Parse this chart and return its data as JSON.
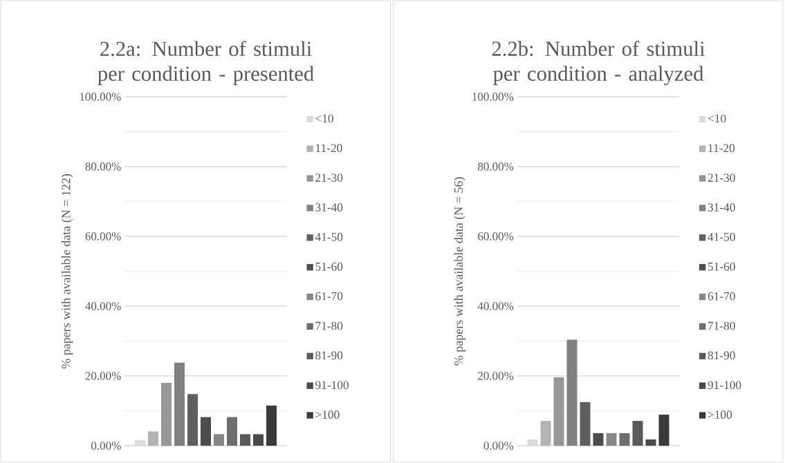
{
  "chart_data": [
    {
      "type": "bar",
      "title": "2.2a: Number of stimuli per condition - presented",
      "ylabel": "% papers with available data (N = 122)",
      "categories": [
        null
      ],
      "ylim": [
        0,
        100
      ],
      "yticks": [
        {
          "value": 0,
          "label": "0.00%"
        },
        {
          "value": 10,
          "label": null
        },
        {
          "value": 20,
          "label": "20.00%"
        },
        {
          "value": 30,
          "label": null
        },
        {
          "value": 40,
          "label": "40.00%"
        },
        {
          "value": 50,
          "label": null
        },
        {
          "value": 60,
          "label": "60.00%"
        },
        {
          "value": 70,
          "label": null
        },
        {
          "value": 80,
          "label": "80.00%"
        },
        {
          "value": 90,
          "label": null
        },
        {
          "value": 100,
          "label": "100.00%"
        }
      ],
      "grid": "y",
      "legend": "right",
      "series": [
        {
          "name": "<10",
          "color": "#dadada",
          "values": [
            1.6
          ]
        },
        {
          "name": "11-20",
          "color": "#b3b3b3",
          "values": [
            4.1
          ]
        },
        {
          "name": "21-30",
          "color": "#969696",
          "values": [
            18.0
          ]
        },
        {
          "name": "31-40",
          "color": "#808080",
          "values": [
            23.8
          ]
        },
        {
          "name": "41-50",
          "color": "#5f5f5f",
          "values": [
            14.8
          ]
        },
        {
          "name": "51-60",
          "color": "#4d4d4d",
          "values": [
            8.2
          ]
        },
        {
          "name": "61-70",
          "color": "#878787",
          "values": [
            3.3
          ]
        },
        {
          "name": "71-80",
          "color": "#6d6d6d",
          "values": [
            8.2
          ]
        },
        {
          "name": "81-90",
          "color": "#5a5a5a",
          "values": [
            3.3
          ]
        },
        {
          "name": "91-100",
          "color": "#4a4a4a",
          "values": [
            3.3
          ]
        },
        {
          "name": ">100",
          "color": "#3a3a3a",
          "values": [
            11.5
          ]
        }
      ]
    },
    {
      "type": "bar",
      "title": "2.2b: Number of stimuli per condition - analyzed",
      "ylabel": "% papers with available data (N = 56)",
      "categories": [
        null
      ],
      "ylim": [
        0,
        100
      ],
      "yticks": [
        {
          "value": 0,
          "label": "0.00%"
        },
        {
          "value": 10,
          "label": null
        },
        {
          "value": 20,
          "label": "20.00%"
        },
        {
          "value": 30,
          "label": null
        },
        {
          "value": 40,
          "label": "40.00%"
        },
        {
          "value": 50,
          "label": null
        },
        {
          "value": 60,
          "label": "60.00%"
        },
        {
          "value": 70,
          "label": null
        },
        {
          "value": 80,
          "label": "80.00%"
        },
        {
          "value": 90,
          "label": null
        },
        {
          "value": 100,
          "label": "100.00%"
        }
      ],
      "grid": "y",
      "legend": "right",
      "series": [
        {
          "name": "<10",
          "color": "#dadada",
          "values": [
            1.8
          ]
        },
        {
          "name": "11-20",
          "color": "#b3b3b3",
          "values": [
            7.1
          ]
        },
        {
          "name": "21-30",
          "color": "#969696",
          "values": [
            19.6
          ]
        },
        {
          "name": "31-40",
          "color": "#808080",
          "values": [
            30.4
          ]
        },
        {
          "name": "41-50",
          "color": "#5f5f5f",
          "values": [
            12.5
          ]
        },
        {
          "name": "51-60",
          "color": "#4d4d4d",
          "values": [
            3.6
          ]
        },
        {
          "name": "61-70",
          "color": "#878787",
          "values": [
            3.6
          ]
        },
        {
          "name": "71-80",
          "color": "#6d6d6d",
          "values": [
            3.6
          ]
        },
        {
          "name": "81-90",
          "color": "#5a5a5a",
          "values": [
            7.1
          ]
        },
        {
          "name": "91-100",
          "color": "#4a4a4a",
          "values": [
            1.8
          ]
        },
        {
          "name": ">100",
          "color": "#3a3a3a",
          "values": [
            8.9
          ]
        }
      ]
    }
  ]
}
